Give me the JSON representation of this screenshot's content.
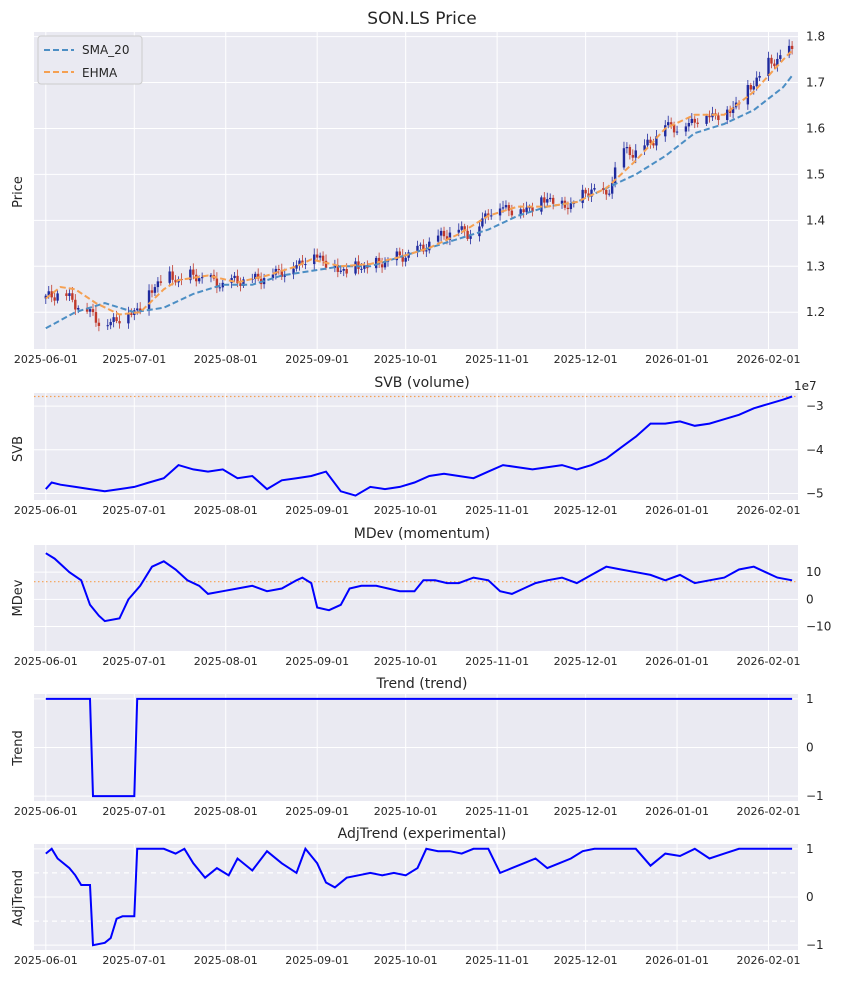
{
  "chart_data": [
    {
      "panel": "price",
      "type": "candlestick",
      "title": "SON.LS Price",
      "ylabel": "Price",
      "ylim": [
        1.12,
        1.81
      ],
      "yticks": [
        1.2,
        1.3,
        1.4,
        1.5,
        1.6,
        1.7,
        1.8
      ],
      "ytick_labels": [
        "1.2",
        "1.3",
        "1.4",
        "1.5",
        "1.6",
        "1.7",
        "1.8"
      ],
      "legend": [
        {
          "name": "SMA_20",
          "color": "#4c8ec4",
          "style": "dashed"
        },
        {
          "name": "EHMA",
          "color": "#f5a052",
          "style": "dashed"
        }
      ],
      "candle_up_color": "#1f2a9e",
      "candle_down_color": "#c0392b",
      "close": [
        [
          0,
          1.23
        ],
        [
          5,
          1.245
        ],
        [
          10,
          1.22
        ],
        [
          15,
          1.2
        ],
        [
          20,
          1.17
        ],
        [
          25,
          1.19
        ],
        [
          30,
          1.2
        ],
        [
          35,
          1.24
        ],
        [
          40,
          1.28
        ],
        [
          45,
          1.27
        ],
        [
          50,
          1.28
        ],
        [
          55,
          1.27
        ],
        [
          60,
          1.26
        ],
        [
          65,
          1.27
        ],
        [
          70,
          1.27
        ],
        [
          75,
          1.28
        ],
        [
          80,
          1.29
        ],
        [
          85,
          1.3
        ],
        [
          90,
          1.33
        ],
        [
          95,
          1.31
        ],
        [
          100,
          1.29
        ],
        [
          105,
          1.3
        ],
        [
          110,
          1.3
        ],
        [
          115,
          1.31
        ],
        [
          120,
          1.32
        ],
        [
          125,
          1.33
        ],
        [
          130,
          1.35
        ],
        [
          135,
          1.37
        ],
        [
          140,
          1.38
        ],
        [
          145,
          1.37
        ],
        [
          150,
          1.42
        ],
        [
          155,
          1.43
        ],
        [
          160,
          1.42
        ],
        [
          165,
          1.43
        ],
        [
          170,
          1.45
        ],
        [
          175,
          1.43
        ],
        [
          180,
          1.44
        ],
        [
          185,
          1.47
        ],
        [
          190,
          1.45
        ],
        [
          195,
          1.55
        ],
        [
          200,
          1.55
        ],
        [
          205,
          1.57
        ],
        [
          210,
          1.61
        ],
        [
          215,
          1.6
        ],
        [
          220,
          1.62
        ],
        [
          225,
          1.63
        ],
        [
          230,
          1.63
        ],
        [
          235,
          1.66
        ],
        [
          240,
          1.7
        ],
        [
          245,
          1.74
        ],
        [
          250,
          1.76
        ],
        [
          253,
          1.77
        ]
      ],
      "sma_20": [
        [
          0,
          1.165
        ],
        [
          10,
          1.2
        ],
        [
          20,
          1.22
        ],
        [
          30,
          1.2
        ],
        [
          40,
          1.21
        ],
        [
          50,
          1.24
        ],
        [
          60,
          1.26
        ],
        [
          70,
          1.26
        ],
        [
          80,
          1.28
        ],
        [
          90,
          1.29
        ],
        [
          100,
          1.3
        ],
        [
          110,
          1.3
        ],
        [
          120,
          1.32
        ],
        [
          130,
          1.34
        ],
        [
          140,
          1.36
        ],
        [
          150,
          1.38
        ],
        [
          160,
          1.41
        ],
        [
          170,
          1.43
        ],
        [
          180,
          1.44
        ],
        [
          190,
          1.47
        ],
        [
          200,
          1.5
        ],
        [
          210,
          1.54
        ],
        [
          220,
          1.59
        ],
        [
          230,
          1.61
        ],
        [
          240,
          1.64
        ],
        [
          250,
          1.69
        ],
        [
          253,
          1.715
        ]
      ],
      "ehma": [
        [
          0,
          1.23
        ],
        [
          5,
          1.255
        ],
        [
          10,
          1.25
        ],
        [
          17,
          1.22
        ],
        [
          25,
          1.195
        ],
        [
          32,
          1.2
        ],
        [
          40,
          1.25
        ],
        [
          45,
          1.27
        ],
        [
          55,
          1.28
        ],
        [
          65,
          1.265
        ],
        [
          75,
          1.28
        ],
        [
          85,
          1.3
        ],
        [
          90,
          1.315
        ],
        [
          100,
          1.3
        ],
        [
          110,
          1.305
        ],
        [
          120,
          1.32
        ],
        [
          130,
          1.34
        ],
        [
          140,
          1.37
        ],
        [
          150,
          1.41
        ],
        [
          160,
          1.43
        ],
        [
          170,
          1.43
        ],
        [
          180,
          1.44
        ],
        [
          190,
          1.47
        ],
        [
          200,
          1.53
        ],
        [
          210,
          1.6
        ],
        [
          220,
          1.63
        ],
        [
          230,
          1.63
        ],
        [
          240,
          1.68
        ],
        [
          250,
          1.75
        ],
        [
          253,
          1.77
        ]
      ]
    },
    {
      "panel": "svb",
      "type": "line",
      "title": "SVB (volume)",
      "ylabel": "SVB",
      "ylim": [
        -5.15,
        -2.7
      ],
      "yticks": [
        -3,
        -4,
        -5
      ],
      "ytick_labels": [
        "−3",
        "−4",
        "−5"
      ],
      "offset_label": "1e7",
      "reference_line": -2.78,
      "color": "#0000ff",
      "values": [
        [
          0,
          -4.9
        ],
        [
          2,
          -4.75
        ],
        [
          5,
          -4.8
        ],
        [
          10,
          -4.85
        ],
        [
          15,
          -4.9
        ],
        [
          20,
          -4.95
        ],
        [
          25,
          -4.9
        ],
        [
          30,
          -4.85
        ],
        [
          35,
          -4.75
        ],
        [
          40,
          -4.65
        ],
        [
          45,
          -4.35
        ],
        [
          50,
          -4.45
        ],
        [
          55,
          -4.5
        ],
        [
          60,
          -4.45
        ],
        [
          65,
          -4.65
        ],
        [
          70,
          -4.6
        ],
        [
          75,
          -4.9
        ],
        [
          80,
          -4.7
        ],
        [
          85,
          -4.65
        ],
        [
          90,
          -4.6
        ],
        [
          95,
          -4.5
        ],
        [
          100,
          -4.95
        ],
        [
          105,
          -5.05
        ],
        [
          110,
          -4.85
        ],
        [
          115,
          -4.9
        ],
        [
          120,
          -4.85
        ],
        [
          125,
          -4.75
        ],
        [
          130,
          -4.6
        ],
        [
          135,
          -4.55
        ],
        [
          140,
          -4.6
        ],
        [
          145,
          -4.65
        ],
        [
          150,
          -4.5
        ],
        [
          155,
          -4.35
        ],
        [
          160,
          -4.4
        ],
        [
          165,
          -4.45
        ],
        [
          170,
          -4.4
        ],
        [
          175,
          -4.35
        ],
        [
          180,
          -4.45
        ],
        [
          185,
          -4.35
        ],
        [
          190,
          -4.2
        ],
        [
          195,
          -3.95
        ],
        [
          200,
          -3.7
        ],
        [
          205,
          -3.4
        ],
        [
          210,
          -3.4
        ],
        [
          215,
          -3.35
        ],
        [
          220,
          -3.45
        ],
        [
          225,
          -3.4
        ],
        [
          230,
          -3.3
        ],
        [
          235,
          -3.2
        ],
        [
          240,
          -3.05
        ],
        [
          245,
          -2.95
        ],
        [
          250,
          -2.85
        ],
        [
          253,
          -2.78
        ]
      ]
    },
    {
      "panel": "mdev",
      "type": "line",
      "title": "MDev (momentum)",
      "ylabel": "MDev",
      "ylim": [
        -19,
        20
      ],
      "yticks": [
        10,
        0,
        -10
      ],
      "ytick_labels": [
        "10",
        "0",
        "−10"
      ],
      "reference_line": 6.5,
      "color": "#0000ff",
      "values": [
        [
          0,
          17
        ],
        [
          3,
          15
        ],
        [
          8,
          10
        ],
        [
          12,
          7
        ],
        [
          15,
          -2
        ],
        [
          18,
          -6
        ],
        [
          20,
          -8
        ],
        [
          25,
          -7
        ],
        [
          28,
          0
        ],
        [
          32,
          5
        ],
        [
          36,
          12
        ],
        [
          40,
          14
        ],
        [
          44,
          11
        ],
        [
          48,
          7
        ],
        [
          52,
          5
        ],
        [
          55,
          2
        ],
        [
          60,
          3
        ],
        [
          65,
          4
        ],
        [
          70,
          5
        ],
        [
          75,
          3
        ],
        [
          80,
          4
        ],
        [
          85,
          7
        ],
        [
          87,
          8
        ],
        [
          90,
          6
        ],
        [
          92,
          -3
        ],
        [
          96,
          -4
        ],
        [
          100,
          -2
        ],
        [
          103,
          4
        ],
        [
          107,
          5
        ],
        [
          112,
          5
        ],
        [
          116,
          4
        ],
        [
          120,
          3
        ],
        [
          125,
          3
        ],
        [
          128,
          7
        ],
        [
          132,
          7
        ],
        [
          136,
          6
        ],
        [
          140,
          6
        ],
        [
          145,
          8
        ],
        [
          150,
          7
        ],
        [
          154,
          3
        ],
        [
          158,
          2
        ],
        [
          162,
          4
        ],
        [
          166,
          6
        ],
        [
          170,
          7
        ],
        [
          175,
          8
        ],
        [
          180,
          6
        ],
        [
          185,
          9
        ],
        [
          190,
          12
        ],
        [
          195,
          11
        ],
        [
          200,
          10
        ],
        [
          205,
          9
        ],
        [
          210,
          7
        ],
        [
          215,
          9
        ],
        [
          220,
          6
        ],
        [
          225,
          7
        ],
        [
          230,
          8
        ],
        [
          235,
          11
        ],
        [
          240,
          12
        ],
        [
          244,
          10
        ],
        [
          248,
          8
        ],
        [
          253,
          7
        ]
      ]
    },
    {
      "panel": "trend",
      "type": "line",
      "title": "Trend (trend)",
      "ylabel": "Trend",
      "ylim": [
        -1.1,
        1.1
      ],
      "yticks": [
        1,
        0,
        -1
      ],
      "ytick_labels": [
        "1",
        "0",
        "−1"
      ],
      "color": "#0000ff",
      "values": [
        [
          0,
          1
        ],
        [
          15,
          1
        ],
        [
          16,
          -1
        ],
        [
          30,
          -1
        ],
        [
          31,
          1
        ],
        [
          253,
          1
        ]
      ]
    },
    {
      "panel": "adjtrend",
      "type": "line",
      "title": "AdjTrend (experimental)",
      "ylabel": "AdjTrend",
      "ylim": [
        -1.1,
        1.1
      ],
      "yticks": [
        1,
        0,
        -1
      ],
      "ytick_labels": [
        "1",
        "0",
        "−1"
      ],
      "reference_lines": [
        0.5,
        -0.5
      ],
      "color": "#0000ff",
      "values": [
        [
          0,
          0.9
        ],
        [
          2,
          1
        ],
        [
          4,
          0.8
        ],
        [
          8,
          0.6
        ],
        [
          10,
          0.45
        ],
        [
          12,
          0.25
        ],
        [
          15,
          0.25
        ],
        [
          16,
          -1
        ],
        [
          20,
          -0.95
        ],
        [
          22,
          -0.85
        ],
        [
          24,
          -0.45
        ],
        [
          26,
          -0.4
        ],
        [
          30,
          -0.4
        ],
        [
          31,
          1
        ],
        [
          40,
          1
        ],
        [
          44,
          0.9
        ],
        [
          47,
          1
        ],
        [
          50,
          0.7
        ],
        [
          54,
          0.4
        ],
        [
          58,
          0.6
        ],
        [
          62,
          0.45
        ],
        [
          65,
          0.8
        ],
        [
          70,
          0.55
        ],
        [
          75,
          0.95
        ],
        [
          80,
          0.7
        ],
        [
          85,
          0.5
        ],
        [
          88,
          1
        ],
        [
          92,
          0.7
        ],
        [
          95,
          0.3
        ],
        [
          98,
          0.2
        ],
        [
          102,
          0.4
        ],
        [
          106,
          0.45
        ],
        [
          110,
          0.5
        ],
        [
          114,
          0.45
        ],
        [
          118,
          0.5
        ],
        [
          122,
          0.45
        ],
        [
          126,
          0.6
        ],
        [
          129,
          1
        ],
        [
          133,
          0.95
        ],
        [
          137,
          0.95
        ],
        [
          141,
          0.9
        ],
        [
          145,
          1
        ],
        [
          150,
          1
        ],
        [
          154,
          0.5
        ],
        [
          158,
          0.6
        ],
        [
          162,
          0.7
        ],
        [
          166,
          0.8
        ],
        [
          170,
          0.6
        ],
        [
          174,
          0.7
        ],
        [
          178,
          0.8
        ],
        [
          182,
          0.95
        ],
        [
          186,
          1
        ],
        [
          195,
          1
        ],
        [
          200,
          1
        ],
        [
          205,
          0.65
        ],
        [
          210,
          0.9
        ],
        [
          215,
          0.85
        ],
        [
          220,
          1
        ],
        [
          225,
          0.8
        ],
        [
          230,
          0.9
        ],
        [
          235,
          1
        ],
        [
          240,
          1
        ],
        [
          253,
          1
        ]
      ]
    }
  ],
  "x_axis": {
    "tick_labels": [
      "2025-06-01",
      "2025-07-01",
      "2025-08-01",
      "2025-09-01",
      "2025-10-01",
      "2025-11-01",
      "2025-12-01",
      "2026-01-01",
      "2026-02-01"
    ],
    "tick_days": [
      0,
      30,
      61,
      92,
      122,
      153,
      183,
      214,
      245
    ],
    "xlim": [
      -4,
      255
    ]
  }
}
